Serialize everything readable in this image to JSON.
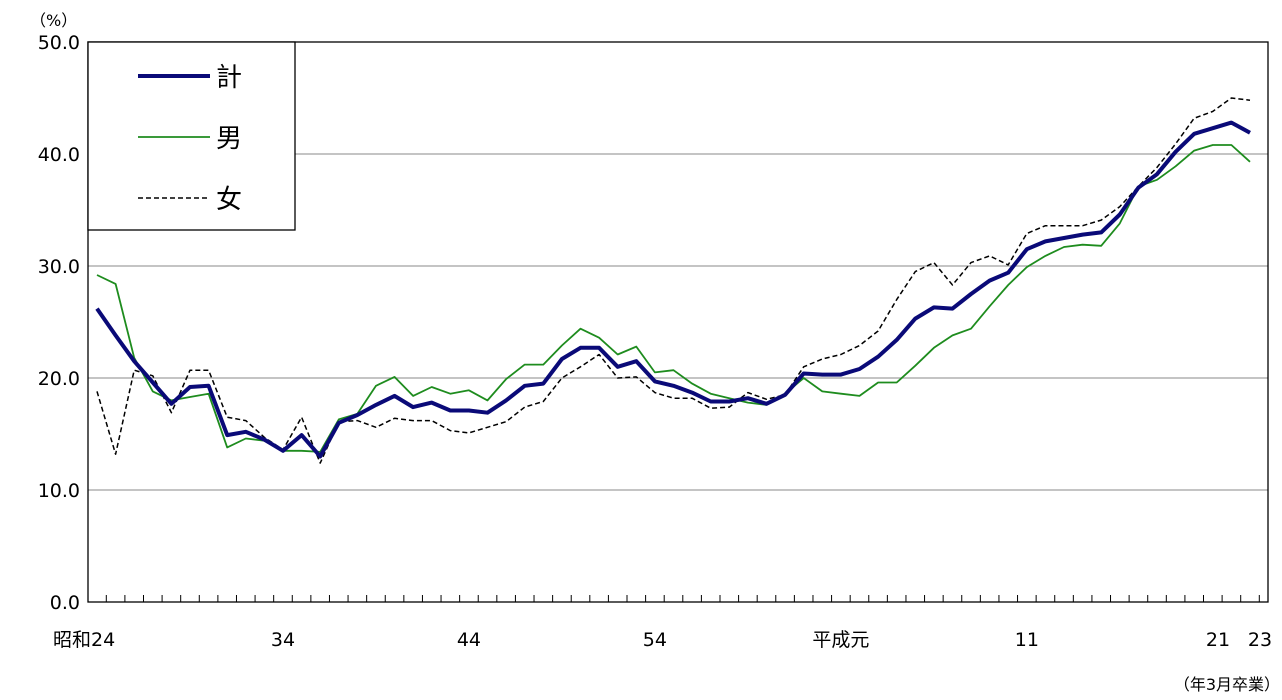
{
  "chart_data": {
    "type": "line",
    "y_unit": "（%）",
    "x_unit": "（年3月卒業）",
    "ylim": [
      0,
      50
    ],
    "y_ticks": [
      "0.0",
      "10.0",
      "20.0",
      "30.0",
      "40.0",
      "50.0"
    ],
    "grid": true,
    "legend_position": "top-left",
    "x_tick_labels": [
      {
        "label": "昭和24",
        "index": 0
      },
      {
        "label": "34",
        "index": 10
      },
      {
        "label": "44",
        "index": 20
      },
      {
        "label": "54",
        "index": 30
      },
      {
        "label": "平成元",
        "index": 40
      },
      {
        "label": "11",
        "index": 50
      },
      {
        "label": "21",
        "index": 60
      },
      {
        "label": "23",
        "index": 62
      }
    ],
    "series": [
      {
        "name": "計",
        "color": "#0a0a78",
        "style": "solid-thick",
        "values": [
          26.2,
          23.8,
          21.5,
          19.6,
          17.7,
          19.2,
          19.3,
          14.9,
          15.2,
          14.5,
          13.5,
          14.9,
          13.0,
          16.0,
          16.7,
          17.6,
          18.4,
          17.4,
          17.8,
          17.1,
          17.1,
          16.9,
          18.0,
          19.3,
          19.5,
          21.7,
          22.7,
          22.7,
          21.0,
          21.5,
          19.7,
          19.3,
          18.7,
          17.9,
          17.9,
          18.2,
          17.7,
          18.5,
          20.4,
          20.3,
          20.3,
          20.8,
          21.9,
          23.4,
          25.3,
          26.3,
          26.2,
          27.5,
          28.7,
          29.4,
          31.5,
          32.2,
          32.5,
          32.8,
          33.0,
          34.6,
          37.0,
          38.2,
          40.2,
          41.8,
          42.3,
          42.8,
          41.9
        ]
      },
      {
        "name": "男",
        "color": "#1e8c1e",
        "style": "solid-thin",
        "values": [
          29.2,
          28.4,
          21.8,
          18.8,
          18.0,
          18.3,
          18.6,
          13.8,
          14.6,
          14.4,
          13.5,
          13.5,
          13.4,
          16.3,
          16.8,
          19.3,
          20.1,
          18.4,
          19.2,
          18.6,
          18.9,
          18.0,
          19.9,
          21.2,
          21.2,
          22.9,
          24.4,
          23.6,
          22.1,
          22.8,
          20.5,
          20.7,
          19.5,
          18.6,
          18.2,
          17.8,
          17.6,
          18.6,
          20.0,
          18.8,
          18.6,
          18.4,
          19.6,
          19.6,
          21.1,
          22.7,
          23.8,
          24.4,
          26.4,
          28.3,
          29.9,
          30.9,
          31.7,
          31.9,
          31.8,
          33.8,
          37.1,
          37.7,
          38.9,
          40.3,
          40.8,
          40.8,
          39.3
        ]
      },
      {
        "name": "女",
        "color": "#000000",
        "style": "dashed",
        "values": [
          18.8,
          13.2,
          20.7,
          20.2,
          16.9,
          20.7,
          20.7,
          16.5,
          16.2,
          14.7,
          13.6,
          16.5,
          12.4,
          16.1,
          16.2,
          15.6,
          16.4,
          16.2,
          16.2,
          15.3,
          15.1,
          15.6,
          16.1,
          17.4,
          17.9,
          20.0,
          21.0,
          22.1,
          20.0,
          20.1,
          18.7,
          18.2,
          18.2,
          17.3,
          17.4,
          18.7,
          18.1,
          18.5,
          21.0,
          21.7,
          22.1,
          22.9,
          24.2,
          27.0,
          29.5,
          30.3,
          28.3,
          30.3,
          30.9,
          30.1,
          32.9,
          33.6,
          33.6,
          33.6,
          34.1,
          35.3,
          37.1,
          38.8,
          40.9,
          43.2,
          43.8,
          45.0,
          44.8
        ]
      }
    ]
  }
}
